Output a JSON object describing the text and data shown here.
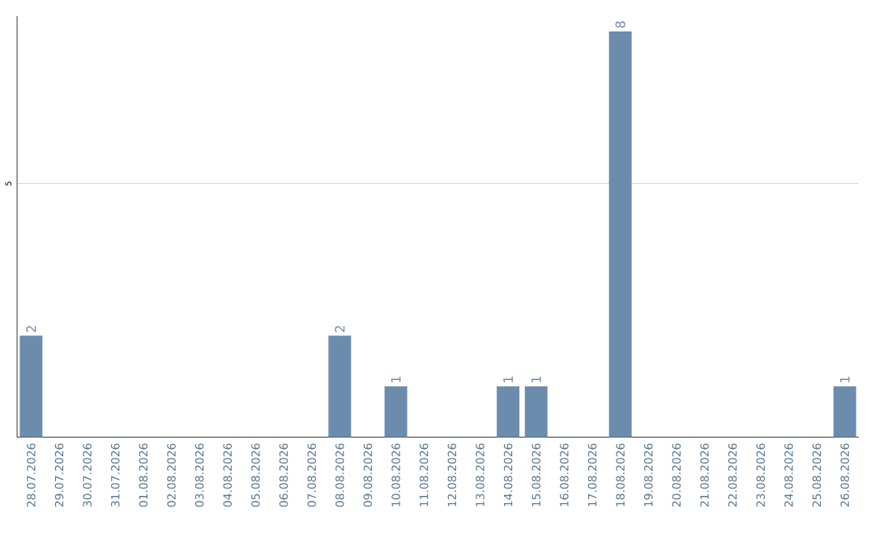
{
  "chart_data": {
    "type": "bar",
    "categories": [
      "28.07.2026",
      "29.07.2026",
      "30.07.2026",
      "31.07.2026",
      "01.08.2026",
      "02.08.2026",
      "03.08.2026",
      "04.08.2026",
      "05.08.2026",
      "06.08.2026",
      "07.08.2026",
      "08.08.2026",
      "09.08.2026",
      "10.08.2026",
      "11.08.2026",
      "12.08.2026",
      "13.08.2026",
      "14.08.2026",
      "15.08.2026",
      "16.08.2026",
      "17.08.2026",
      "18.08.2026",
      "19.08.2026",
      "20.08.2026",
      "21.08.2026",
      "22.08.2026",
      "23.08.2026",
      "24.08.2026",
      "25.08.2026",
      "26.08.2026"
    ],
    "values": [
      2,
      0,
      0,
      0,
      0,
      0,
      0,
      0,
      0,
      0,
      0,
      2,
      0,
      1,
      0,
      0,
      0,
      1,
      1,
      0,
      0,
      8,
      0,
      0,
      0,
      0,
      0,
      0,
      0,
      1
    ],
    "value_labels": [
      "2",
      null,
      null,
      null,
      null,
      null,
      null,
      null,
      null,
      null,
      null,
      "2",
      null,
      "1",
      null,
      null,
      null,
      "1",
      "1",
      null,
      null,
      "8",
      null,
      null,
      null,
      null,
      null,
      null,
      null,
      "1"
    ],
    "color": "#6b8cad",
    "ylim": [
      0,
      8.3
    ],
    "yticks": [
      5
    ],
    "grid": "y"
  }
}
